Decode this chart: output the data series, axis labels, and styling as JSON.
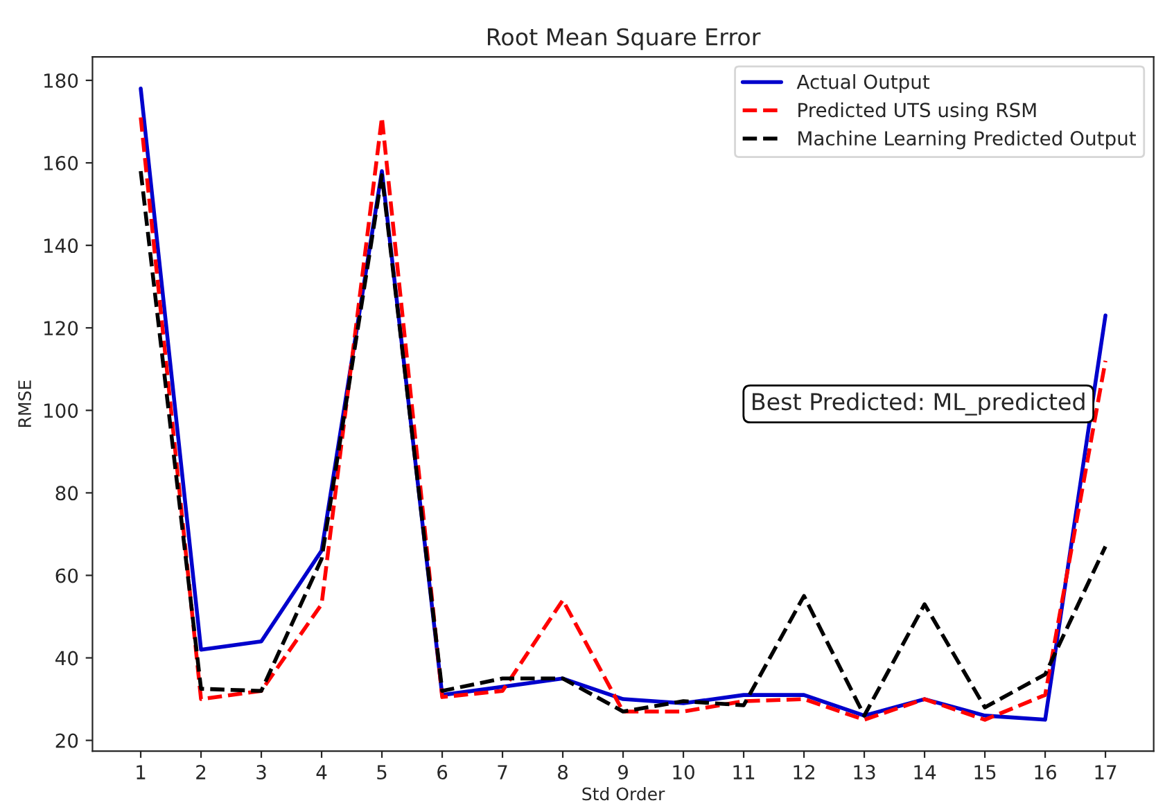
{
  "chart_data": {
    "type": "line",
    "title": "Root Mean Square Error",
    "xlabel": "Std Order",
    "ylabel": "RMSE",
    "x": [
      1,
      2,
      3,
      4,
      5,
      6,
      7,
      8,
      9,
      10,
      11,
      12,
      13,
      14,
      15,
      16,
      17
    ],
    "series": [
      {
        "name": "Actual Output",
        "color": "#0000cc",
        "line_style": "solid",
        "values": [
          178,
          42,
          44,
          66,
          158,
          31,
          33,
          35,
          30,
          29,
          31,
          31,
          26,
          30,
          26,
          25,
          123
        ]
      },
      {
        "name": "Predicted UTS using RSM",
        "color": "#ff0000",
        "line_style": "dashed",
        "values": [
          171,
          30,
          32,
          53,
          171,
          30.5,
          32,
          54,
          27,
          27,
          29.5,
          30,
          25,
          30,
          25,
          31,
          112
        ]
      },
      {
        "name": "Machine Learning Predicted Output",
        "color": "#000000",
        "line_style": "dashed",
        "values": [
          158,
          32.5,
          32,
          64,
          157,
          32,
          35,
          35,
          27,
          29.5,
          28.5,
          55,
          26,
          53,
          28,
          36,
          67
        ]
      }
    ],
    "xlim": [
      0.2,
      17.8
    ],
    "xticks": [
      1,
      2,
      3,
      4,
      5,
      6,
      7,
      8,
      9,
      10,
      11,
      12,
      13,
      14,
      15,
      16,
      17
    ],
    "ylim": [
      17.4,
      185.7
    ],
    "yticks": [
      20,
      40,
      60,
      80,
      100,
      120,
      140,
      160,
      180
    ],
    "annotations": [
      "Best Predicted: ML_predicted"
    ],
    "legend": "top right",
    "grid": false,
    "marker": "none"
  }
}
